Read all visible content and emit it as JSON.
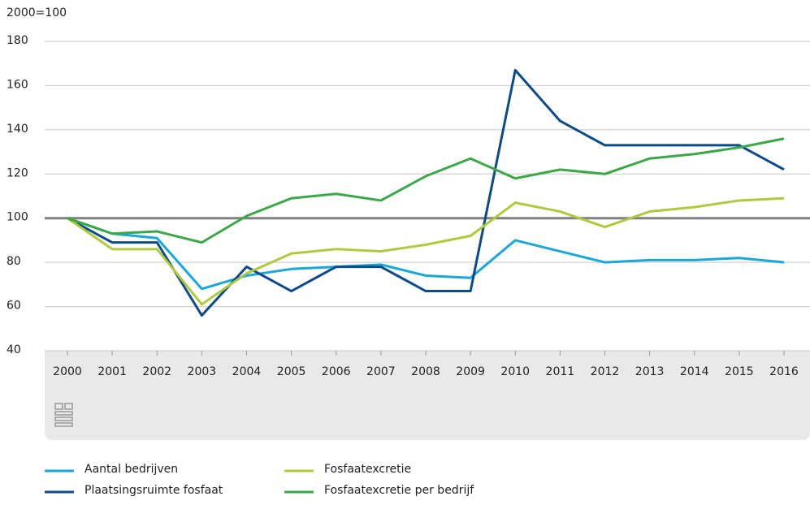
{
  "chart_data": {
    "type": "line",
    "y_label": "2000=100",
    "categories": [
      "2000",
      "2001",
      "2002",
      "2003",
      "2004",
      "2005",
      "2006",
      "2007",
      "2008",
      "2009",
      "2010",
      "2011",
      "2012",
      "2013",
      "2014",
      "2015",
      "2016"
    ],
    "series": [
      {
        "name": "Aantal bedrijven",
        "color": "#1aa7d9",
        "values": [
          100,
          93,
          91,
          68,
          74,
          77,
          78,
          79,
          74,
          73,
          90,
          85,
          80,
          81,
          81,
          82,
          80
        ]
      },
      {
        "name": "Plaatsingsruimte fosfaat",
        "color": "#0b4a8c",
        "values": [
          100,
          89,
          89,
          56,
          78,
          67,
          78,
          78,
          67,
          67,
          167,
          144,
          133,
          133,
          133,
          133,
          122
        ]
      },
      {
        "name": "Fosfaatexcretie",
        "color": "#afca3c",
        "values": [
          100,
          86,
          86,
          61,
          75,
          84,
          86,
          85,
          88,
          92,
          107,
          103,
          96,
          103,
          105,
          108,
          109
        ]
      },
      {
        "name": "Fosfaatexcretie per bedrijf",
        "color": "#3aa847",
        "values": [
          100,
          93,
          94,
          89,
          101,
          109,
          111,
          108,
          119,
          127,
          118,
          122,
          120,
          127,
          129,
          132,
          136
        ]
      }
    ],
    "reference_line": 100,
    "ylim": [
      40,
      180
    ],
    "yticks": [
      40,
      60,
      80,
      100,
      120,
      140,
      160,
      180
    ],
    "grid": true
  }
}
